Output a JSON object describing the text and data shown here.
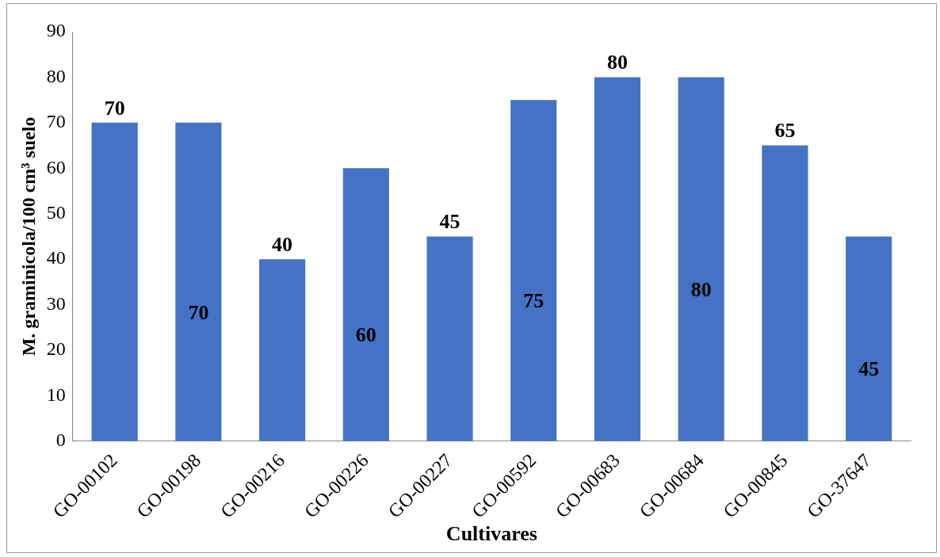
{
  "chart_data": {
    "type": "bar",
    "xlabel": "Cultivares",
    "ylabel": "M. graminicola/100 cm³ suelo",
    "categories": [
      "GO-00102",
      "GO-00198",
      "GO-00216",
      "GO-00226",
      "GO-00227",
      "GO-00592",
      "GO-00683",
      "GO-00684",
      "GO-00845",
      "GO-37647"
    ],
    "values": [
      70,
      70,
      40,
      60,
      45,
      75,
      80,
      80,
      65,
      45
    ],
    "color": "#4472c4",
    "ylim": [
      0,
      90
    ],
    "yticks": [
      0,
      10,
      20,
      30,
      40,
      50,
      60,
      70,
      80,
      90
    ],
    "grid": false,
    "legend": false,
    "data_labels": true
  }
}
